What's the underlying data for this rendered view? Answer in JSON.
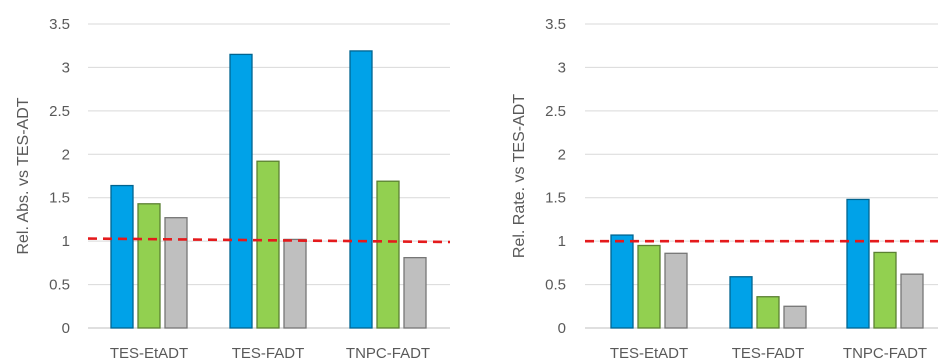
{
  "chart_data": [
    {
      "type": "bar",
      "ylabel": "Rel. Abs. vs TES-ADT",
      "ylim": [
        0,
        3.5
      ],
      "yticks": [
        "0",
        "0.5",
        "1",
        "1.5",
        "2",
        "2.5",
        "3",
        "3.5"
      ],
      "categories": [
        "TES-EtADT",
        "TES-FADT",
        "TNPC-FADT"
      ],
      "series": [
        {
          "values": [
            1.64,
            3.15,
            3.19
          ],
          "color": "#00a2e8"
        },
        {
          "values": [
            1.43,
            1.92,
            1.69
          ],
          "color": "#92d050"
        },
        {
          "values": [
            1.27,
            1.02,
            0.81
          ],
          "color": "#bfbfbf"
        }
      ],
      "reference_line": {
        "y_start": 1.03,
        "y_end": 0.99,
        "color": "#e41a1c",
        "style": "dashed"
      },
      "grid": true
    },
    {
      "type": "bar",
      "ylabel": "Rel. Rate. vs TES-ADT",
      "ylim": [
        0,
        3.5
      ],
      "yticks": [
        "0",
        "0.5",
        "1",
        "1.5",
        "2",
        "2.5",
        "3",
        "3.5"
      ],
      "categories": [
        "TES-EtADT",
        "TES-FADT",
        "TNPC-FADT"
      ],
      "series": [
        {
          "values": [
            1.07,
            0.59,
            1.48
          ],
          "color": "#00a2e8"
        },
        {
          "values": [
            0.95,
            0.36,
            0.87
          ],
          "color": "#92d050"
        },
        {
          "values": [
            0.86,
            0.25,
            0.62
          ],
          "color": "#bfbfbf"
        }
      ],
      "reference_line": {
        "y_start": 1.0,
        "y_end": 1.0,
        "color": "#e41a1c",
        "style": "dashed"
      },
      "grid": true
    }
  ]
}
